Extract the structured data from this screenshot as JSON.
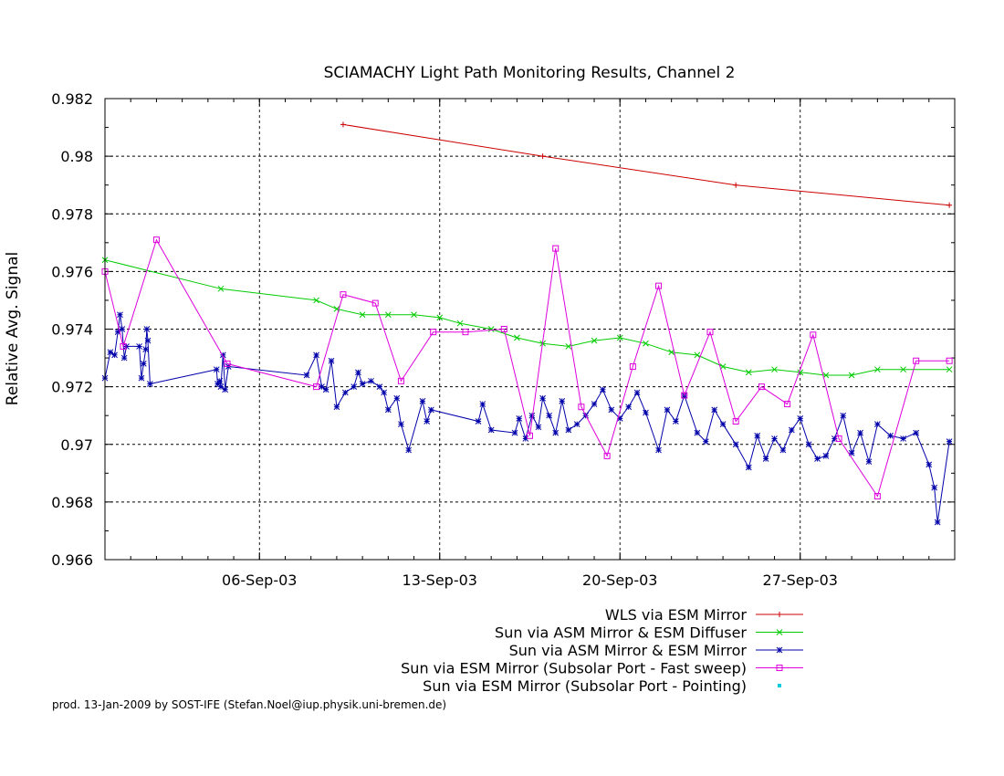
{
  "chart_data": {
    "type": "line",
    "title": "SCIAMACHY Light Path Monitoring Results, Channel 2",
    "xlabel": "",
    "ylabel": "Relative Avg. Signal",
    "x_axis": "date",
    "xlim": [
      "2003-08-31T00:00",
      "2003-10-03T00:00"
    ],
    "ylim": [
      0.966,
      0.982
    ],
    "x_ticks": [
      {
        "date": "2003-09-06",
        "label": "06-Sep-03"
      },
      {
        "date": "2003-09-13",
        "label": "13-Sep-03"
      },
      {
        "date": "2003-09-20",
        "label": "20-Sep-03"
      },
      {
        "date": "2003-09-27",
        "label": "27-Sep-03"
      }
    ],
    "y_ticks": [
      "0.966",
      "0.968",
      "0.97",
      "0.972",
      "0.974",
      "0.976",
      "0.978",
      "0.98",
      "0.982"
    ],
    "grid": true,
    "legend_position": "bottom",
    "series": [
      {
        "name": "WLS via ESM Mirror",
        "color": "#cc0000",
        "marker": "plus",
        "points": [
          [
            "2003-09-09T06:00",
            0.9811
          ],
          [
            "2003-09-17T00:00",
            0.98
          ],
          [
            "2003-09-24T12:00",
            0.979
          ],
          [
            "2003-10-02T19:00",
            0.9783
          ]
        ]
      },
      {
        "name": "Sun via ASM Mirror & ESM Diffuser",
        "color": "#00cc00",
        "marker": "x",
        "points": [
          [
            "2003-08-31T00:00",
            0.9764
          ],
          [
            "2003-09-04T12:00",
            0.9754
          ],
          [
            "2003-09-08T05:00",
            0.975
          ],
          [
            "2003-09-09T00:00",
            0.9747
          ],
          [
            "2003-09-10T00:00",
            0.9745
          ],
          [
            "2003-09-11T00:00",
            0.9745
          ],
          [
            "2003-09-12T00:00",
            0.9745
          ],
          [
            "2003-09-13T00:00",
            0.9744
          ],
          [
            "2003-09-13T19:00",
            0.9742
          ],
          [
            "2003-09-15T00:00",
            0.974
          ],
          [
            "2003-09-16T00:00",
            0.9737
          ],
          [
            "2003-09-17T00:00",
            0.9735
          ],
          [
            "2003-09-18T00:00",
            0.9734
          ],
          [
            "2003-09-19T00:00",
            0.9736
          ],
          [
            "2003-09-20T00:00",
            0.9737
          ],
          [
            "2003-09-21T00:00",
            0.9735
          ],
          [
            "2003-09-22T00:00",
            0.9732
          ],
          [
            "2003-09-23T00:00",
            0.9731
          ],
          [
            "2003-09-24T00:00",
            0.9727
          ],
          [
            "2003-09-25T00:00",
            0.9725
          ],
          [
            "2003-09-26T00:00",
            0.9726
          ],
          [
            "2003-09-27T00:00",
            0.9725
          ],
          [
            "2003-09-28T00:00",
            0.9724
          ],
          [
            "2003-09-29T00:00",
            0.9724
          ],
          [
            "2003-09-30T00:00",
            0.9726
          ],
          [
            "2003-10-01T00:00",
            0.9726
          ],
          [
            "2003-10-02T19:00",
            0.9726
          ]
        ]
      },
      {
        "name": "Sun via ASM Mirror & ESM Mirror",
        "color": "#0000aa",
        "marker": "star",
        "points": [
          [
            "2003-08-31T00:00",
            0.9723
          ],
          [
            "2003-08-31T05:00",
            0.9732
          ],
          [
            "2003-08-31T09:00",
            0.9731
          ],
          [
            "2003-08-31T12:00",
            0.9739
          ],
          [
            "2003-08-31T14:00",
            0.9745
          ],
          [
            "2003-08-31T16:00",
            0.974
          ],
          [
            "2003-08-31T18:00",
            0.973
          ],
          [
            "2003-08-31T20:00",
            0.9734
          ],
          [
            "2003-09-01T08:00",
            0.9734
          ],
          [
            "2003-09-01T10:00",
            0.9723
          ],
          [
            "2003-09-01T12:00",
            0.9728
          ],
          [
            "2003-09-01T14:00",
            0.9733
          ],
          [
            "2003-09-01T15:00",
            0.974
          ],
          [
            "2003-09-01T16:00",
            0.9736
          ],
          [
            "2003-09-01T18:00",
            0.9721
          ],
          [
            "2003-09-04T08:00",
            0.9726
          ],
          [
            "2003-09-04T09:00",
            0.9721
          ],
          [
            "2003-09-04T11:00",
            0.9722
          ],
          [
            "2003-09-04T12:00",
            0.972
          ],
          [
            "2003-09-04T14:00",
            0.9731
          ],
          [
            "2003-09-04T16:00",
            0.9719
          ],
          [
            "2003-09-04T19:00",
            0.9727
          ],
          [
            "2003-09-07T20:00",
            0.9724
          ],
          [
            "2003-09-08T05:00",
            0.9731
          ],
          [
            "2003-09-08T10:00",
            0.972
          ],
          [
            "2003-09-08T14:00",
            0.9719
          ],
          [
            "2003-09-08T19:00",
            0.9729
          ],
          [
            "2003-09-09T00:00",
            0.9713
          ],
          [
            "2003-09-09T08:00",
            0.9718
          ],
          [
            "2003-09-09T16:00",
            0.972
          ],
          [
            "2003-09-09T20:00",
            0.9725
          ],
          [
            "2003-09-10T00:00",
            0.9721
          ],
          [
            "2003-09-10T08:00",
            0.9722
          ],
          [
            "2003-09-10T16:00",
            0.972
          ],
          [
            "2003-09-10T20:00",
            0.9718
          ],
          [
            "2003-09-11T00:00",
            0.9712
          ],
          [
            "2003-09-11T08:00",
            0.9716
          ],
          [
            "2003-09-11T12:00",
            0.9707
          ],
          [
            "2003-09-11T19:00",
            0.9698
          ],
          [
            "2003-09-12T08:00",
            0.9715
          ],
          [
            "2003-09-12T12:00",
            0.9708
          ],
          [
            "2003-09-12T16:00",
            0.9712
          ],
          [
            "2003-09-14T12:00",
            0.9708
          ],
          [
            "2003-09-14T16:00",
            0.9714
          ],
          [
            "2003-09-15T00:00",
            0.9705
          ],
          [
            "2003-09-15T22:00",
            0.9704
          ],
          [
            "2003-09-16T02:00",
            0.9709
          ],
          [
            "2003-09-16T08:00",
            0.9702
          ],
          [
            "2003-09-16T14:00",
            0.971
          ],
          [
            "2003-09-16T20:00",
            0.9706
          ],
          [
            "2003-09-17T00:00",
            0.9716
          ],
          [
            "2003-09-17T06:00",
            0.971
          ],
          [
            "2003-09-17T12:00",
            0.9704
          ],
          [
            "2003-09-17T18:00",
            0.9715
          ],
          [
            "2003-09-18T00:00",
            0.9705
          ],
          [
            "2003-09-18T08:00",
            0.9707
          ],
          [
            "2003-09-18T16:00",
            0.971
          ],
          [
            "2003-09-19T00:00",
            0.9714
          ],
          [
            "2003-09-19T08:00",
            0.9719
          ],
          [
            "2003-09-19T16:00",
            0.9712
          ],
          [
            "2003-09-20T00:00",
            0.9709
          ],
          [
            "2003-09-20T08:00",
            0.9713
          ],
          [
            "2003-09-20T16:00",
            0.9718
          ],
          [
            "2003-09-21T00:00",
            0.9711
          ],
          [
            "2003-09-21T12:00",
            0.9698
          ],
          [
            "2003-09-21T20:00",
            0.9712
          ],
          [
            "2003-09-22T04:00",
            0.9708
          ],
          [
            "2003-09-22T12:00",
            0.9717
          ],
          [
            "2003-09-23T00:00",
            0.9704
          ],
          [
            "2003-09-23T08:00",
            0.9701
          ],
          [
            "2003-09-23T16:00",
            0.9712
          ],
          [
            "2003-09-24T00:00",
            0.9707
          ],
          [
            "2003-09-24T12:00",
            0.97
          ],
          [
            "2003-09-25T00:00",
            0.9692
          ],
          [
            "2003-09-25T08:00",
            0.9703
          ],
          [
            "2003-09-25T16:00",
            0.9695
          ],
          [
            "2003-09-26T00:00",
            0.9702
          ],
          [
            "2003-09-26T08:00",
            0.9698
          ],
          [
            "2003-09-26T16:00",
            0.9705
          ],
          [
            "2003-09-27T00:00",
            0.9709
          ],
          [
            "2003-09-27T08:00",
            0.97
          ],
          [
            "2003-09-27T16:00",
            0.9695
          ],
          [
            "2003-09-28T00:00",
            0.9696
          ],
          [
            "2003-09-28T08:00",
            0.9702
          ],
          [
            "2003-09-28T16:00",
            0.971
          ],
          [
            "2003-09-29T00:00",
            0.9697
          ],
          [
            "2003-09-29T08:00",
            0.9704
          ],
          [
            "2003-09-29T16:00",
            0.9694
          ],
          [
            "2003-09-30T00:00",
            0.9707
          ],
          [
            "2003-09-30T12:00",
            0.9703
          ],
          [
            "2003-10-01T00:00",
            0.9702
          ],
          [
            "2003-10-01T12:00",
            0.9704
          ],
          [
            "2003-10-02T00:00",
            0.9693
          ],
          [
            "2003-10-02T05:00",
            0.9685
          ],
          [
            "2003-10-02T08:00",
            0.9673
          ],
          [
            "2003-10-02T19:00",
            0.9701
          ]
        ]
      },
      {
        "name": "Sun via ESM Mirror (Subsolar Port - Fast sweep)",
        "color": "#dd00dd",
        "marker": "square",
        "points": [
          [
            "2003-08-31T00:00",
            0.976
          ],
          [
            "2003-08-31T17:00",
            0.9734
          ],
          [
            "2003-09-02T00:00",
            0.9771
          ],
          [
            "2003-09-04T18:00",
            0.9728
          ],
          [
            "2003-09-08T05:00",
            0.972
          ],
          [
            "2003-09-09T06:00",
            0.9752
          ],
          [
            "2003-09-10T12:00",
            0.9749
          ],
          [
            "2003-09-11T12:00",
            0.9722
          ],
          [
            "2003-09-12T18:00",
            0.9739
          ],
          [
            "2003-09-14T00:00",
            0.9739
          ],
          [
            "2003-09-15T12:00",
            0.974
          ],
          [
            "2003-09-16T12:00",
            0.9703
          ],
          [
            "2003-09-17T12:00",
            0.9768
          ],
          [
            "2003-09-18T12:00",
            0.9713
          ],
          [
            "2003-09-19T12:00",
            0.9696
          ],
          [
            "2003-09-20T12:00",
            0.9727
          ],
          [
            "2003-09-21T12:00",
            0.9755
          ],
          [
            "2003-09-22T12:00",
            0.9717
          ],
          [
            "2003-09-23T12:00",
            0.9739
          ],
          [
            "2003-09-24T12:00",
            0.9708
          ],
          [
            "2003-09-25T12:00",
            0.972
          ],
          [
            "2003-09-26T12:00",
            0.9714
          ],
          [
            "2003-09-27T12:00",
            0.9738
          ],
          [
            "2003-09-28T12:00",
            0.9702
          ],
          [
            "2003-09-30T00:00",
            0.9682
          ],
          [
            "2003-10-01T12:00",
            0.9729
          ],
          [
            "2003-10-02T19:00",
            0.9729
          ]
        ]
      },
      {
        "name": "Sun via ESM Mirror (Subsolar Port - Pointing)",
        "color": "#00ccdd",
        "marker": "dot",
        "points": []
      }
    ]
  },
  "footer": "prod. 13-Jan-2009 by SOST-IFE (Stefan.Noel@iup.physik.uni-bremen.de)"
}
